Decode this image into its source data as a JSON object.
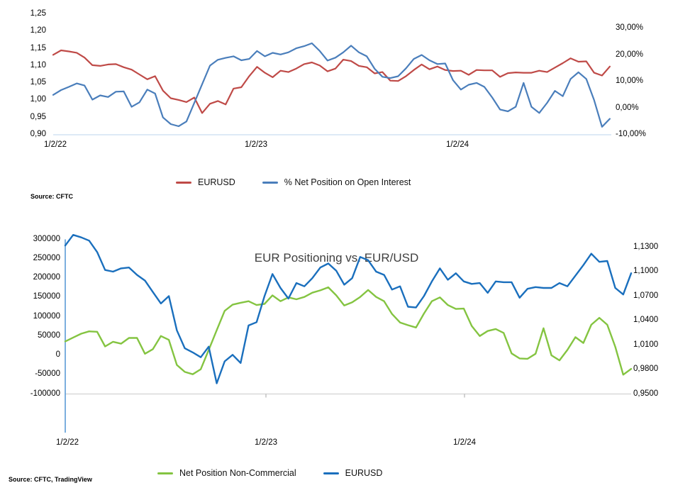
{
  "page": {
    "background": "#ffffff"
  },
  "chart_data": [
    {
      "type": "line",
      "title": "",
      "source": "Source: CFTC",
      "x_tick_labels": [
        "1/2/22",
        "1/2/23",
        "1/2/24"
      ],
      "y_left": {
        "labels": [
          "1,25",
          "1,20",
          "1,15",
          "1,10",
          "1,05",
          "1,00",
          "0,95",
          "0,90"
        ],
        "values": [
          1.25,
          1.2,
          1.15,
          1.1,
          1.05,
          1.0,
          0.95,
          0.9
        ],
        "range": [
          0.9,
          1.25
        ]
      },
      "y_right": {
        "labels": [
          "30,00%",
          "20,00%",
          "10,00%",
          "0,00%",
          "-10,00%"
        ],
        "values": [
          30,
          20,
          10,
          0,
          -10
        ],
        "range": [
          -10,
          30
        ]
      },
      "gridline_color": "#c9ddf0",
      "legend": [
        {
          "label": "EURUSD",
          "color": "#bf4a47"
        },
        {
          "label": "% Net Position on Open Interest",
          "color": "#4a7ebb"
        }
      ],
      "series": [
        {
          "name": "EURUSD",
          "axis": "left",
          "color": "#bf4a47",
          "values": [
            1.132,
            1.145,
            1.142,
            1.138,
            1.124,
            1.102,
            1.1,
            1.104,
            1.105,
            1.096,
            1.089,
            1.075,
            1.061,
            1.07,
            1.028,
            1.006,
            1.001,
            0.995,
            1.008,
            0.963,
            0.99,
            0.998,
            0.988,
            1.034,
            1.038,
            1.07,
            1.097,
            1.08,
            1.067,
            1.086,
            1.082,
            1.092,
            1.105,
            1.11,
            1.101,
            1.084,
            1.092,
            1.118,
            1.114,
            1.1,
            1.096,
            1.078,
            1.082,
            1.057,
            1.056,
            1.07,
            1.088,
            1.104,
            1.09,
            1.098,
            1.088,
            1.085,
            1.086,
            1.074,
            1.088,
            1.087,
            1.087,
            1.068,
            1.079,
            1.081,
            1.08,
            1.08,
            1.086,
            1.082,
            1.095,
            1.108,
            1.122,
            1.112,
            1.113,
            1.08,
            1.072,
            1.098
          ]
        },
        {
          "name": "% Net Position on Open Interest",
          "axis": "right",
          "color": "#4a7ebb",
          "values": [
            5,
            6.8,
            8,
            9.3,
            8.5,
            3.2,
            4.8,
            4.2,
            6.2,
            6.3,
            0.5,
            2.2,
            7,
            5.5,
            -3.5,
            -6,
            -6.8,
            -5,
            2,
            9,
            16,
            18.2,
            18.9,
            19.5,
            18,
            18.5,
            21.5,
            19.5,
            20.8,
            20.2,
            21,
            22.5,
            23.3,
            24.4,
            21.5,
            17.9,
            19,
            21,
            23.5,
            21,
            19.5,
            14.8,
            11.8,
            11.3,
            12,
            15,
            18.5,
            20,
            18,
            16.6,
            16.8,
            10.5,
            7,
            8.8,
            9.5,
            8,
            4,
            -0.5,
            -1.2,
            0.5,
            9.5,
            0.5,
            -1.8,
            2,
            6.5,
            4.5,
            11,
            13.5,
            11,
            3,
            -7,
            -4
          ]
        }
      ]
    },
    {
      "type": "line",
      "title": "EUR Positioning vs. EUR/USD",
      "source": "Source: CFTC, TradingView",
      "x_tick_labels": [
        "1/2/22",
        "1/2/23",
        "1/2/24"
      ],
      "y_left": {
        "labels": [
          "300000",
          "250000",
          "200000",
          "150000",
          "100000",
          "50000",
          "0",
          "-50000",
          "-100000"
        ],
        "values": [
          300000,
          250000,
          200000,
          150000,
          100000,
          50000,
          0,
          -50000,
          -100000
        ],
        "range": [
          -100000,
          300000
        ]
      },
      "y_right": {
        "labels": [
          "1,1300",
          "1,1000",
          "1,0700",
          "1,0400",
          "1,0100",
          "0,9800",
          "0,9500"
        ],
        "values": [
          1.13,
          1.1,
          1.07,
          1.04,
          1.01,
          0.98,
          0.95
        ],
        "range": [
          0.95,
          1.13
        ]
      },
      "gridline_color": "#d2d2d2",
      "axis_line_color": "#5b9bd5",
      "legend": [
        {
          "label": "Net Position Non-Commercial",
          "color": "#84c441"
        },
        {
          "label": "EURUSD",
          "color": "#1a6fbd"
        }
      ],
      "series": [
        {
          "name": "Net Position Non-Commercial",
          "axis": "left",
          "color": "#84c441",
          "values": [
            36000,
            46000,
            56000,
            62000,
            61000,
            23000,
            35000,
            30000,
            45000,
            45000,
            4000,
            16000,
            50000,
            40000,
            -25000,
            -43000,
            -49000,
            -36000,
            14000,
            65000,
            115000,
            131000,
            136000,
            140000,
            130000,
            133000,
            155000,
            140000,
            150000,
            145000,
            151000,
            162000,
            168000,
            176000,
            155000,
            129000,
            137000,
            151000,
            169000,
            151000,
            140000,
            107000,
            85000,
            78000,
            72000,
            108000,
            140000,
            150000,
            130000,
            120000,
            121000,
            76000,
            50000,
            63000,
            68000,
            58000,
            5000,
            -8000,
            -9000,
            4000,
            70000,
            0,
            -13000,
            14000,
            47000,
            32000,
            79000,
            97000,
            79000,
            22000,
            -50000,
            -35000
          ]
        },
        {
          "name": "EURUSD",
          "axis": "right",
          "color": "#1a6fbd",
          "values": [
            1.132,
            1.145,
            1.142,
            1.138,
            1.124,
            1.102,
            1.1,
            1.104,
            1.105,
            1.096,
            1.089,
            1.075,
            1.061,
            1.07,
            1.028,
            1.006,
            1.001,
            0.995,
            1.008,
            0.963,
            0.99,
            0.998,
            0.988,
            1.034,
            1.038,
            1.07,
            1.097,
            1.08,
            1.067,
            1.086,
            1.082,
            1.092,
            1.105,
            1.11,
            1.101,
            1.084,
            1.092,
            1.118,
            1.114,
            1.1,
            1.096,
            1.078,
            1.082,
            1.057,
            1.056,
            1.07,
            1.088,
            1.104,
            1.09,
            1.098,
            1.088,
            1.085,
            1.086,
            1.074,
            1.088,
            1.087,
            1.087,
            1.068,
            1.079,
            1.081,
            1.08,
            1.08,
            1.086,
            1.082,
            1.095,
            1.108,
            1.122,
            1.112,
            1.113,
            1.08,
            1.072,
            1.098
          ]
        }
      ]
    }
  ]
}
